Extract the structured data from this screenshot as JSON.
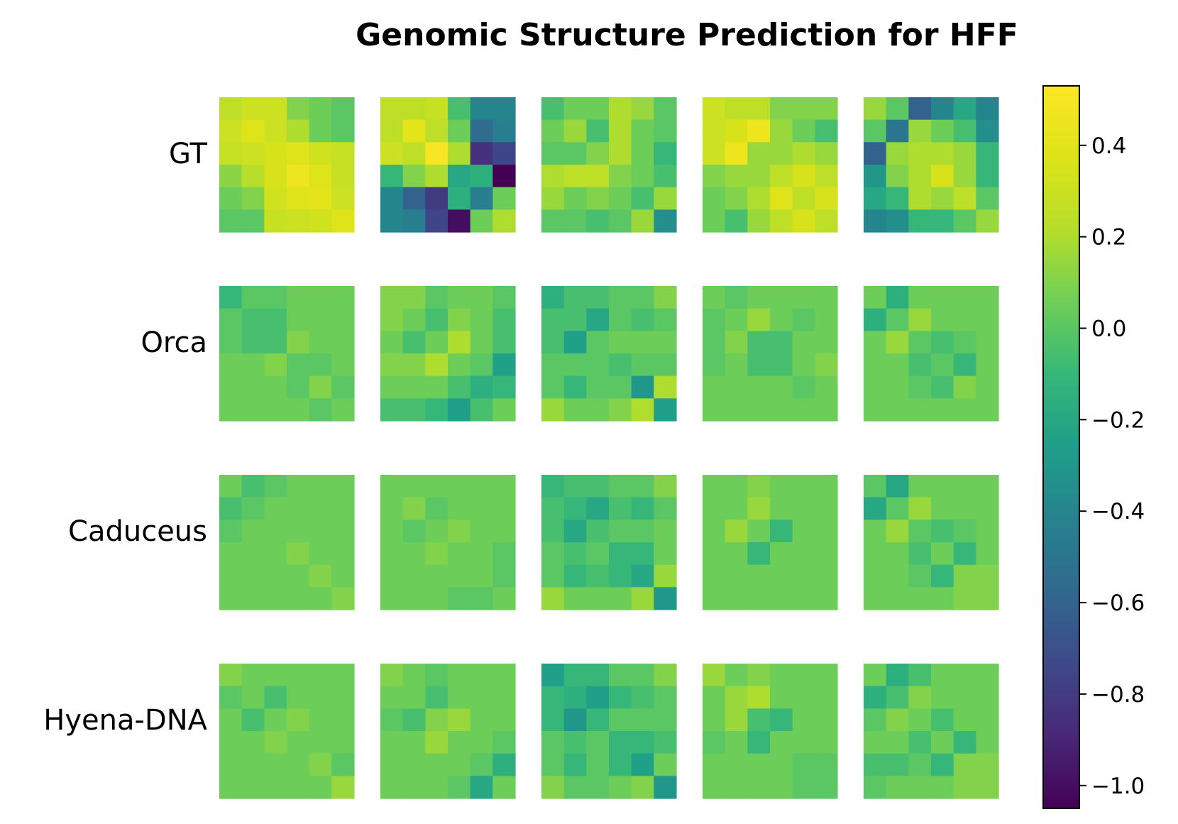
{
  "chart_data": {
    "type": "heatmap",
    "title": "Genomic Structure Prediction for HFF",
    "row_labels": [
      "GT",
      "Orca",
      "Caduceus",
      "Hyena-DNA"
    ],
    "colormap": "viridis",
    "vmin": -1.05,
    "vmax": 0.53,
    "colorbar_ticks": [
      0.4,
      0.2,
      0.0,
      -0.2,
      -0.4,
      -0.6,
      -0.8,
      -1.0
    ],
    "colorbar_tick_labels": [
      "0.4",
      "0.2",
      "0.0",
      "−0.2",
      "−0.4",
      "−0.6",
      "−0.8",
      "−1.0"
    ],
    "panels": [
      [
        [
          [
            0.25,
            0.3,
            0.3,
            0.1,
            0.05,
            0.0
          ],
          [
            0.3,
            0.38,
            0.3,
            0.2,
            0.05,
            0.0
          ],
          [
            0.28,
            0.3,
            0.35,
            0.38,
            0.32,
            0.28
          ],
          [
            0.12,
            0.22,
            0.35,
            0.45,
            0.38,
            0.28
          ],
          [
            0.05,
            0.1,
            0.32,
            0.38,
            0.4,
            0.3
          ],
          [
            0.0,
            0.0,
            0.28,
            0.3,
            0.32,
            0.38
          ]
        ],
        [
          [
            0.25,
            0.25,
            0.28,
            -0.05,
            -0.4,
            -0.4
          ],
          [
            0.25,
            0.4,
            0.25,
            0.05,
            -0.55,
            -0.45
          ],
          [
            0.3,
            0.25,
            0.5,
            0.2,
            -0.85,
            -0.75
          ],
          [
            -0.1,
            0.1,
            0.2,
            -0.2,
            -0.15,
            -1.05
          ],
          [
            -0.4,
            -0.6,
            -0.8,
            -0.15,
            -0.45,
            0.05
          ],
          [
            -0.4,
            -0.45,
            -0.75,
            -1.0,
            0.05,
            0.2
          ]
        ],
        [
          [
            -0.05,
            0.05,
            0.05,
            0.2,
            0.15,
            0.0
          ],
          [
            0.05,
            0.15,
            -0.05,
            0.2,
            0.05,
            0.0
          ],
          [
            0.0,
            0.0,
            0.1,
            0.2,
            0.05,
            -0.1
          ],
          [
            0.2,
            0.25,
            0.25,
            0.1,
            0.05,
            -0.05
          ],
          [
            0.15,
            0.05,
            0.1,
            0.05,
            -0.05,
            0.15
          ],
          [
            0.0,
            0.0,
            -0.05,
            0.0,
            0.15,
            -0.35
          ]
        ],
        [
          [
            0.3,
            0.25,
            0.25,
            0.1,
            0.1,
            0.1
          ],
          [
            0.3,
            0.35,
            0.45,
            0.15,
            0.05,
            -0.05
          ],
          [
            0.3,
            0.45,
            0.15,
            0.15,
            0.2,
            0.15
          ],
          [
            0.1,
            0.15,
            0.15,
            0.25,
            0.35,
            0.25
          ],
          [
            0.05,
            0.1,
            0.2,
            0.38,
            0.25,
            0.35
          ],
          [
            0.05,
            -0.05,
            0.15,
            0.25,
            0.35,
            0.25
          ]
        ],
        [
          [
            0.15,
            0.0,
            -0.6,
            -0.4,
            -0.2,
            -0.4
          ],
          [
            0.0,
            -0.5,
            0.15,
            0.05,
            -0.05,
            -0.35
          ],
          [
            -0.6,
            0.15,
            0.2,
            0.2,
            0.15,
            -0.1
          ],
          [
            -0.3,
            0.1,
            0.2,
            0.35,
            0.15,
            -0.1
          ],
          [
            -0.2,
            -0.1,
            0.2,
            0.15,
            0.25,
            0.0
          ],
          [
            -0.4,
            -0.35,
            -0.1,
            -0.1,
            0.0,
            0.15
          ]
        ]
      ],
      [
        [
          [
            -0.1,
            0.0,
            0.0,
            0.05,
            0.05,
            0.05
          ],
          [
            0.0,
            -0.05,
            -0.05,
            0.05,
            0.05,
            0.05
          ],
          [
            0.0,
            -0.05,
            -0.05,
            0.1,
            0.05,
            0.05
          ],
          [
            0.05,
            0.05,
            0.1,
            0.0,
            0.0,
            0.05
          ],
          [
            0.05,
            0.05,
            0.05,
            0.0,
            0.1,
            0.0
          ],
          [
            0.05,
            0.05,
            0.05,
            0.05,
            0.0,
            0.05
          ]
        ],
        [
          [
            0.1,
            0.1,
            0.0,
            0.05,
            0.05,
            0.0
          ],
          [
            0.1,
            0.05,
            -0.05,
            0.1,
            0.05,
            -0.05
          ],
          [
            0.05,
            -0.05,
            0.05,
            0.2,
            0.05,
            -0.05
          ],
          [
            0.1,
            0.1,
            0.2,
            0.05,
            0.0,
            -0.25
          ],
          [
            0.05,
            0.05,
            0.05,
            -0.05,
            -0.15,
            -0.1
          ],
          [
            -0.05,
            -0.05,
            -0.1,
            -0.25,
            -0.05,
            0.05
          ]
        ],
        [
          [
            -0.15,
            -0.05,
            -0.05,
            0.0,
            0.0,
            0.1
          ],
          [
            -0.05,
            -0.05,
            -0.2,
            0.0,
            -0.05,
            0.0
          ],
          [
            -0.05,
            -0.25,
            0.0,
            0.05,
            0.05,
            0.05
          ],
          [
            0.0,
            0.0,
            0.0,
            -0.05,
            0.0,
            0.0
          ],
          [
            0.0,
            -0.1,
            0.0,
            0.0,
            -0.3,
            0.2
          ],
          [
            0.15,
            0.05,
            0.05,
            0.1,
            0.2,
            -0.25
          ]
        ],
        [
          [
            0.05,
            0.0,
            0.05,
            0.05,
            0.05,
            0.05
          ],
          [
            0.0,
            0.05,
            0.15,
            0.05,
            0.0,
            0.05
          ],
          [
            0.0,
            0.1,
            -0.05,
            -0.05,
            0.05,
            0.05
          ],
          [
            0.0,
            0.05,
            -0.05,
            -0.05,
            0.05,
            0.1
          ],
          [
            0.05,
            0.05,
            0.05,
            0.05,
            0.0,
            0.05
          ],
          [
            0.05,
            0.05,
            0.05,
            0.05,
            0.05,
            0.05
          ]
        ],
        [
          [
            0.05,
            -0.15,
            0.05,
            0.05,
            0.05,
            0.05
          ],
          [
            -0.15,
            0.0,
            0.15,
            0.05,
            0.05,
            0.05
          ],
          [
            0.05,
            0.15,
            0.0,
            -0.05,
            0.0,
            0.05
          ],
          [
            0.05,
            0.05,
            -0.05,
            0.0,
            -0.1,
            0.05
          ],
          [
            0.05,
            0.05,
            0.0,
            -0.05,
            0.1,
            0.05
          ],
          [
            0.05,
            0.05,
            0.05,
            0.05,
            0.05,
            0.05
          ]
        ]
      ],
      [
        [
          [
            0.05,
            -0.05,
            0.0,
            0.05,
            0.05,
            0.05
          ],
          [
            -0.05,
            0.0,
            0.05,
            0.05,
            0.05,
            0.05
          ],
          [
            0.0,
            0.05,
            0.05,
            0.05,
            0.05,
            0.05
          ],
          [
            0.05,
            0.05,
            0.05,
            0.1,
            0.05,
            0.05
          ],
          [
            0.05,
            0.05,
            0.05,
            0.05,
            0.1,
            0.05
          ],
          [
            0.05,
            0.05,
            0.05,
            0.05,
            0.05,
            0.1
          ]
        ],
        [
          [
            0.05,
            0.05,
            0.05,
            0.05,
            0.05,
            0.05
          ],
          [
            0.05,
            0.1,
            0.0,
            0.05,
            0.05,
            0.05
          ],
          [
            0.05,
            0.0,
            0.05,
            0.1,
            0.05,
            0.05
          ],
          [
            0.05,
            0.05,
            0.1,
            0.05,
            0.05,
            0.0
          ],
          [
            0.05,
            0.05,
            0.05,
            0.05,
            0.05,
            0.0
          ],
          [
            0.05,
            0.05,
            0.05,
            0.0,
            0.0,
            0.05
          ]
        ],
        [
          [
            -0.1,
            -0.05,
            -0.05,
            0.0,
            0.0,
            0.1
          ],
          [
            -0.05,
            -0.1,
            -0.2,
            -0.05,
            -0.1,
            0.0
          ],
          [
            -0.05,
            -0.2,
            -0.05,
            0.0,
            0.0,
            0.05
          ],
          [
            0.0,
            -0.05,
            0.0,
            -0.1,
            -0.1,
            0.05
          ],
          [
            0.0,
            -0.1,
            -0.05,
            -0.1,
            -0.2,
            0.15
          ],
          [
            0.15,
            0.05,
            0.05,
            0.05,
            0.15,
            -0.3
          ]
        ],
        [
          [
            0.05,
            0.05,
            0.1,
            0.05,
            0.05,
            0.05
          ],
          [
            0.05,
            0.05,
            0.15,
            0.05,
            0.05,
            0.05
          ],
          [
            0.05,
            0.15,
            0.05,
            -0.1,
            0.05,
            0.05
          ],
          [
            0.05,
            0.05,
            -0.1,
            0.05,
            0.05,
            0.05
          ],
          [
            0.05,
            0.05,
            0.05,
            0.05,
            0.05,
            0.05
          ],
          [
            0.05,
            0.05,
            0.05,
            0.05,
            0.05,
            0.05
          ]
        ],
        [
          [
            0.0,
            -0.2,
            0.05,
            0.05,
            0.05,
            0.05
          ],
          [
            -0.2,
            0.0,
            0.15,
            0.05,
            0.05,
            0.05
          ],
          [
            0.05,
            0.15,
            0.0,
            -0.05,
            0.0,
            0.05
          ],
          [
            0.05,
            0.05,
            -0.05,
            0.05,
            -0.1,
            0.05
          ],
          [
            0.05,
            0.05,
            0.0,
            -0.1,
            0.1,
            0.1
          ],
          [
            0.05,
            0.05,
            0.05,
            0.05,
            0.1,
            0.1
          ]
        ]
      ],
      [
        [
          [
            0.1,
            0.05,
            0.05,
            0.05,
            0.05,
            0.05
          ],
          [
            0.0,
            0.05,
            -0.05,
            0.05,
            0.05,
            0.05
          ],
          [
            0.05,
            -0.05,
            0.05,
            0.1,
            0.05,
            0.05
          ],
          [
            0.05,
            0.05,
            0.1,
            0.05,
            0.05,
            0.05
          ],
          [
            0.05,
            0.05,
            0.05,
            0.05,
            0.1,
            0.0
          ],
          [
            0.05,
            0.05,
            0.05,
            0.05,
            0.05,
            0.15
          ]
        ],
        [
          [
            0.1,
            0.05,
            0.0,
            0.05,
            0.05,
            0.05
          ],
          [
            0.05,
            0.05,
            -0.05,
            0.05,
            0.05,
            0.05
          ],
          [
            0.0,
            -0.05,
            0.1,
            0.15,
            0.05,
            0.05
          ],
          [
            0.05,
            0.05,
            0.15,
            0.05,
            0.05,
            0.0
          ],
          [
            0.05,
            0.05,
            0.05,
            0.05,
            0.0,
            -0.15
          ],
          [
            0.05,
            0.05,
            0.05,
            0.0,
            -0.2,
            0.05
          ]
        ],
        [
          [
            -0.25,
            -0.1,
            -0.1,
            0.0,
            0.0,
            0.1
          ],
          [
            -0.1,
            -0.15,
            -0.25,
            -0.1,
            -0.05,
            0.0
          ],
          [
            -0.1,
            -0.3,
            -0.1,
            0.0,
            0.0,
            0.0
          ],
          [
            0.0,
            -0.05,
            0.0,
            -0.1,
            -0.1,
            -0.05
          ],
          [
            0.0,
            -0.1,
            0.0,
            -0.1,
            -0.25,
            0.05
          ],
          [
            0.1,
            0.0,
            0.0,
            0.05,
            0.1,
            -0.3
          ]
        ],
        [
          [
            0.15,
            0.05,
            0.1,
            0.05,
            0.05,
            0.05
          ],
          [
            0.05,
            0.15,
            0.2,
            0.05,
            0.05,
            0.05
          ],
          [
            0.05,
            0.15,
            -0.05,
            -0.1,
            0.05,
            0.05
          ],
          [
            0.0,
            0.05,
            -0.1,
            0.05,
            0.05,
            0.05
          ],
          [
            0.05,
            0.05,
            0.05,
            0.05,
            0.0,
            0.0
          ],
          [
            0.05,
            0.05,
            0.05,
            0.05,
            0.0,
            0.0
          ]
        ],
        [
          [
            0.05,
            -0.15,
            -0.05,
            0.05,
            0.05,
            0.05
          ],
          [
            -0.15,
            -0.05,
            0.1,
            0.05,
            0.05,
            0.05
          ],
          [
            0.0,
            0.1,
            0.05,
            -0.05,
            0.05,
            0.05
          ],
          [
            0.05,
            0.05,
            -0.05,
            0.05,
            -0.1,
            0.05
          ],
          [
            -0.05,
            -0.05,
            0.0,
            -0.1,
            0.1,
            0.1
          ],
          [
            0.0,
            0.05,
            0.05,
            0.05,
            0.1,
            0.1
          ]
        ]
      ]
    ]
  }
}
